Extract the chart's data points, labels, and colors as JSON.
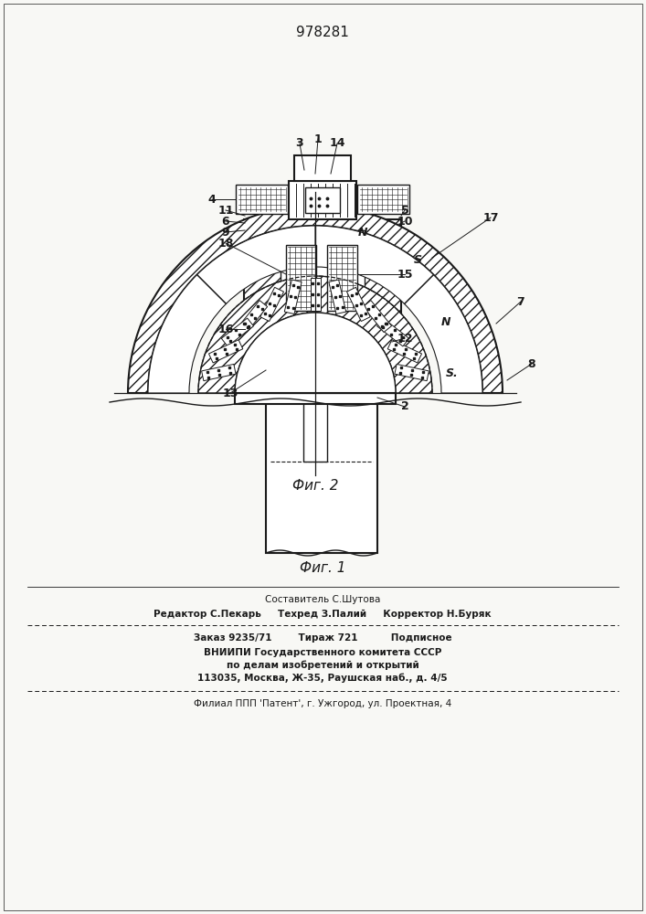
{
  "title": "978281",
  "bottom_text": [
    "Составитель С.Шутова",
    "Редактор С.Пекарь     Техред З.Палий     Корректор Н.Буряк",
    "Заказ 9235/71        Тираж 721          Подписное",
    "ВНИИПИ Государственного комитета СССР",
    "по делам изобретений и открытий",
    "113035, Москва, Ж-35, Раушская наб., д. 4/5",
    "Филиал ППП 'Патент', г. Ужгород, ул. Проектная, 4"
  ],
  "bg_color": "#f8f8f5",
  "line_color": "#1a1a1a"
}
